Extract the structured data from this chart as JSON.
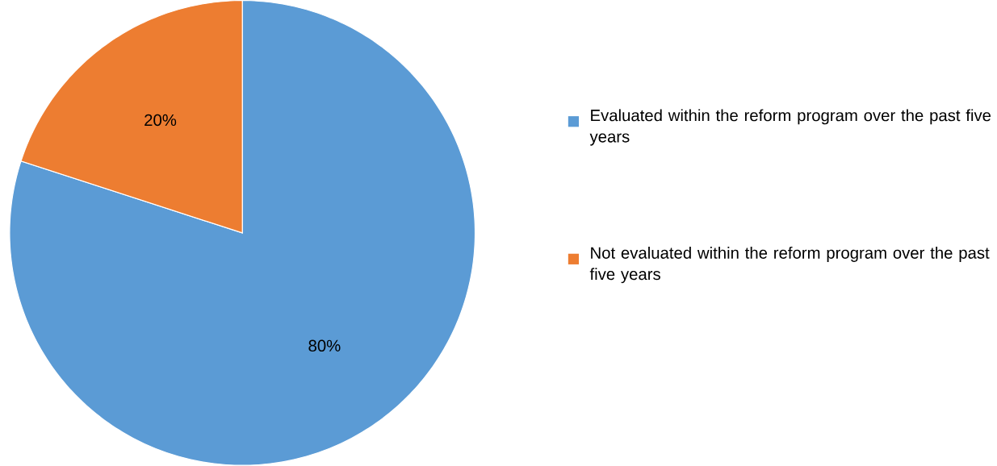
{
  "chart_data": {
    "type": "pie",
    "categories": [
      "Evaluated within the reform program over the past five years",
      "Not evaluated within the reform program over the past five years"
    ],
    "values": [
      80,
      20
    ],
    "colors": [
      "#5b9bd5",
      "#ed7d31"
    ],
    "value_labels": [
      "80%",
      "20%"
    ],
    "legend": "right"
  }
}
